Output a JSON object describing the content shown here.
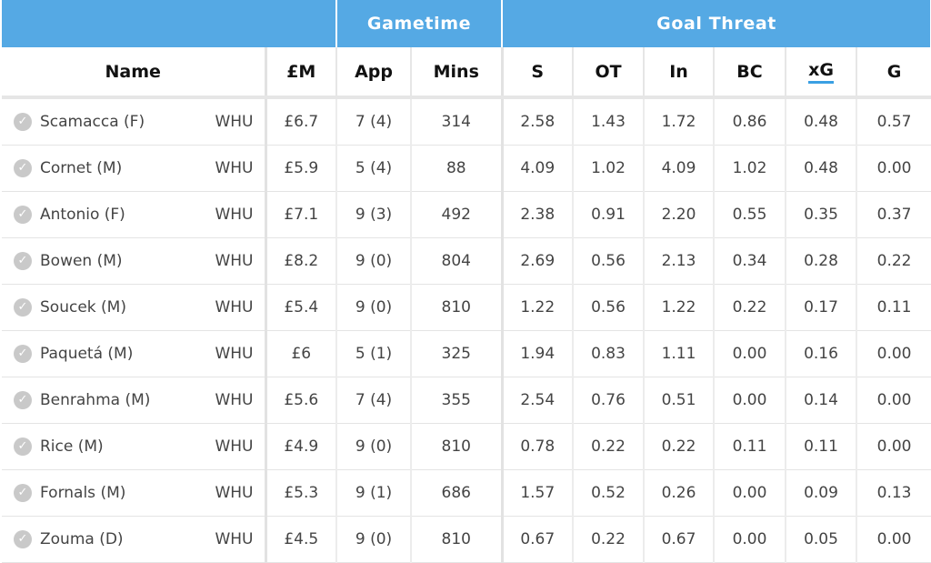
{
  "groups": {
    "gametime": "Gametime",
    "goal_threat": "Goal Threat"
  },
  "headers": {
    "name": "Name",
    "price": "£M",
    "app": "App",
    "mins": "Mins",
    "s": "S",
    "ot": "OT",
    "in": "In",
    "bc": "BC",
    "xg": "xG",
    "g": "G"
  },
  "icons": {
    "row_check": "check-circle-icon"
  },
  "colors": {
    "header_blue": "#55a9e4",
    "sort_underline": "#3aa0e3"
  },
  "sorted_by": "xG",
  "players": [
    {
      "name": "Scamacca (F)",
      "team": "WHU",
      "price": "£6.7",
      "app": "7 (4)",
      "mins": "314",
      "s": "2.58",
      "ot": "1.43",
      "in": "1.72",
      "bc": "0.86",
      "xg": "0.48",
      "g": "0.57"
    },
    {
      "name": "Cornet (M)",
      "team": "WHU",
      "price": "£5.9",
      "app": "5 (4)",
      "mins": "88",
      "s": "4.09",
      "ot": "1.02",
      "in": "4.09",
      "bc": "1.02",
      "xg": "0.48",
      "g": "0.00"
    },
    {
      "name": "Antonio (F)",
      "team": "WHU",
      "price": "£7.1",
      "app": "9 (3)",
      "mins": "492",
      "s": "2.38",
      "ot": "0.91",
      "in": "2.20",
      "bc": "0.55",
      "xg": "0.35",
      "g": "0.37"
    },
    {
      "name": "Bowen (M)",
      "team": "WHU",
      "price": "£8.2",
      "app": "9 (0)",
      "mins": "804",
      "s": "2.69",
      "ot": "0.56",
      "in": "2.13",
      "bc": "0.34",
      "xg": "0.28",
      "g": "0.22"
    },
    {
      "name": "Soucek (M)",
      "team": "WHU",
      "price": "£5.4",
      "app": "9 (0)",
      "mins": "810",
      "s": "1.22",
      "ot": "0.56",
      "in": "1.22",
      "bc": "0.22",
      "xg": "0.17",
      "g": "0.11"
    },
    {
      "name": "Paquetá (M)",
      "team": "WHU",
      "price": "£6",
      "app": "5 (1)",
      "mins": "325",
      "s": "1.94",
      "ot": "0.83",
      "in": "1.11",
      "bc": "0.00",
      "xg": "0.16",
      "g": "0.00"
    },
    {
      "name": "Benrahma (M)",
      "team": "WHU",
      "price": "£5.6",
      "app": "7 (4)",
      "mins": "355",
      "s": "2.54",
      "ot": "0.76",
      "in": "0.51",
      "bc": "0.00",
      "xg": "0.14",
      "g": "0.00"
    },
    {
      "name": "Rice (M)",
      "team": "WHU",
      "price": "£4.9",
      "app": "9 (0)",
      "mins": "810",
      "s": "0.78",
      "ot": "0.22",
      "in": "0.22",
      "bc": "0.11",
      "xg": "0.11",
      "g": "0.00"
    },
    {
      "name": "Fornals (M)",
      "team": "WHU",
      "price": "£5.3",
      "app": "9 (1)",
      "mins": "686",
      "s": "1.57",
      "ot": "0.52",
      "in": "0.26",
      "bc": "0.00",
      "xg": "0.09",
      "g": "0.13"
    },
    {
      "name": "Zouma (D)",
      "team": "WHU",
      "price": "£4.5",
      "app": "9 (0)",
      "mins": "810",
      "s": "0.67",
      "ot": "0.22",
      "in": "0.67",
      "bc": "0.00",
      "xg": "0.05",
      "g": "0.00"
    }
  ]
}
